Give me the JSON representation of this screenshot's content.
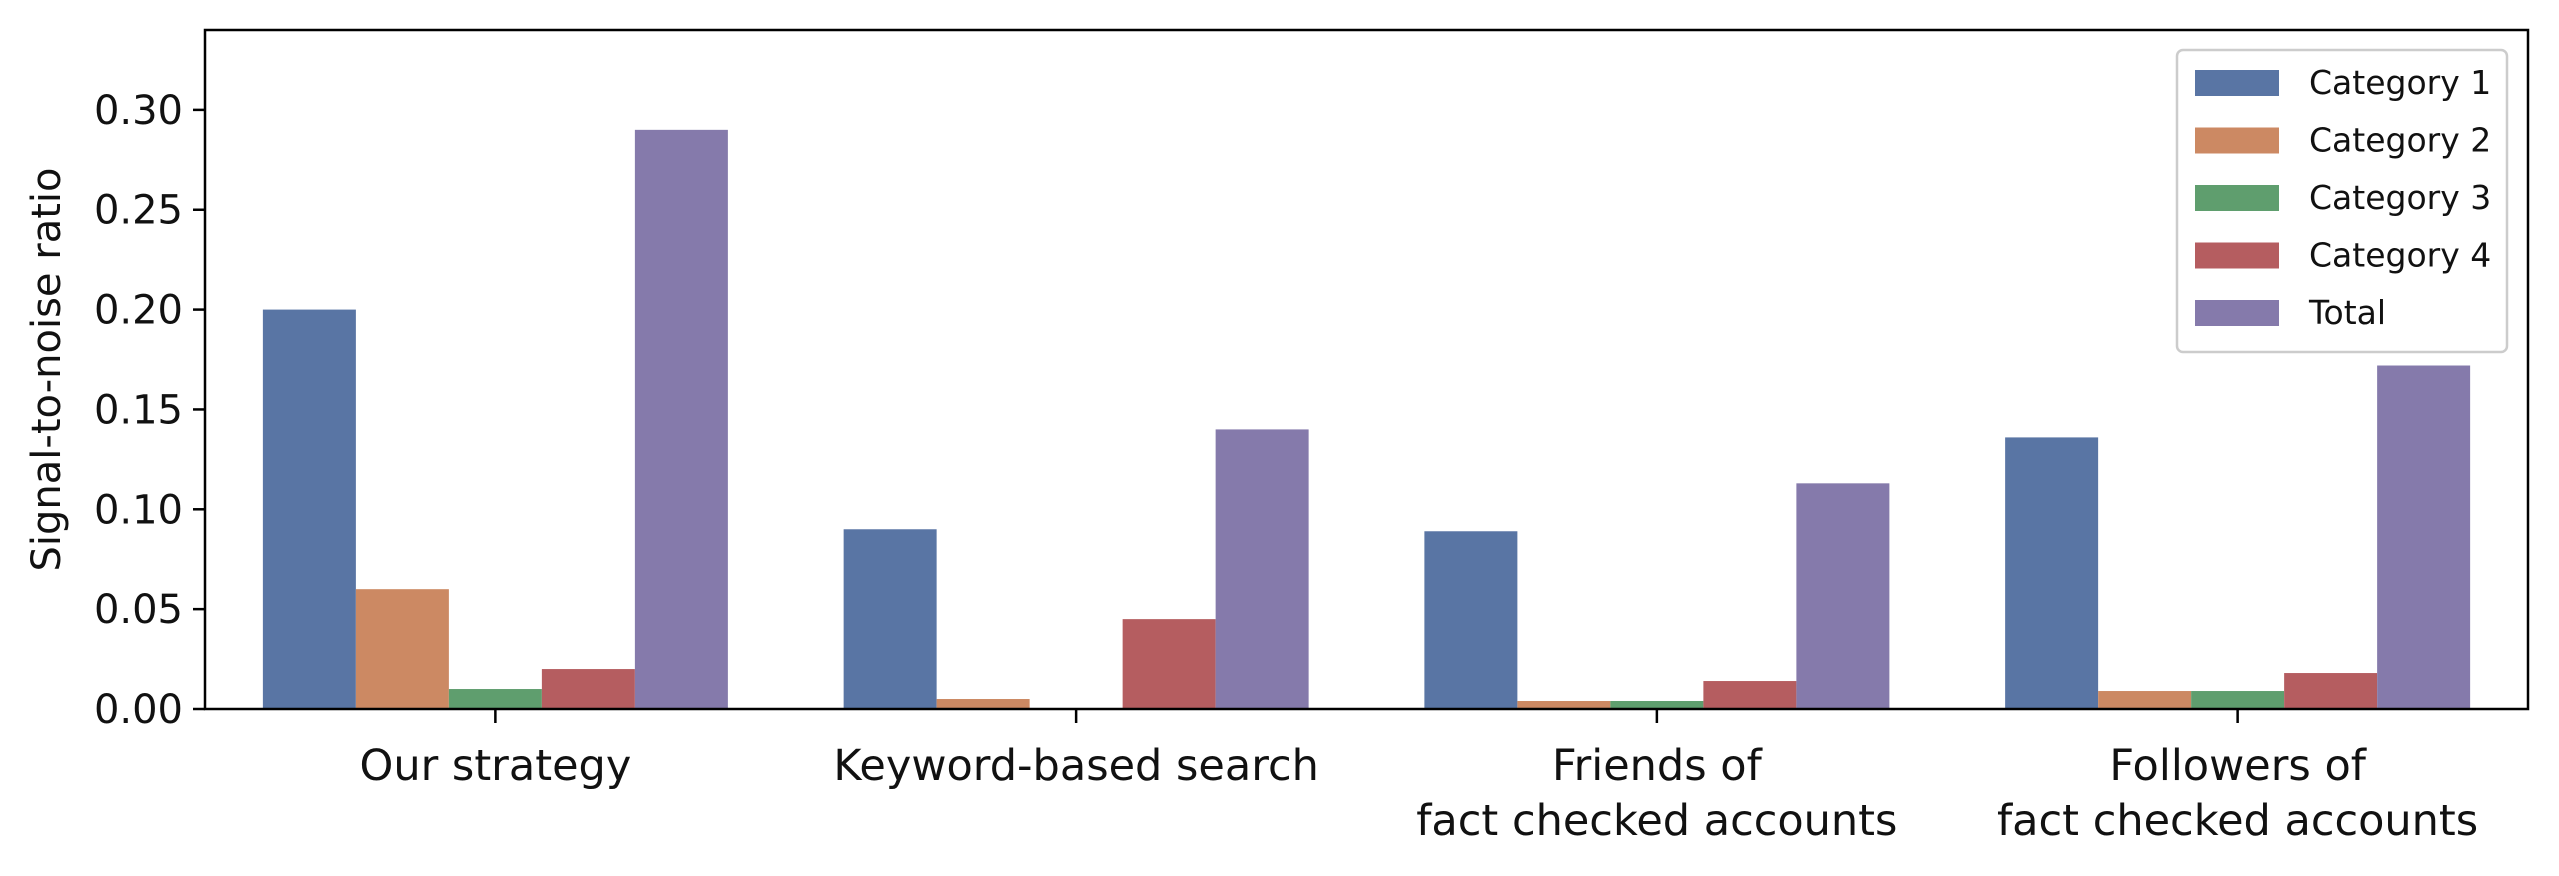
{
  "chart_data": {
    "type": "bar",
    "title": "",
    "xlabel": "",
    "ylabel": "Signal-to-noise ratio",
    "ylim": [
      0,
      0.34
    ],
    "yticks": [
      "0.00",
      "0.05",
      "0.10",
      "0.15",
      "0.20",
      "0.25",
      "0.30"
    ],
    "grid": false,
    "legend_position": "top-right",
    "categories": [
      [
        "Our strategy"
      ],
      [
        "Keyword-based search"
      ],
      [
        "Friends of",
        "fact checked accounts"
      ],
      [
        "Followers of",
        "fact checked accounts"
      ]
    ],
    "series": [
      {
        "name": "Category 1",
        "color": "#5975a4",
        "values": [
          0.2,
          0.09,
          0.089,
          0.136
        ]
      },
      {
        "name": "Category 2",
        "color": "#cc8963",
        "values": [
          0.06,
          0.005,
          0.004,
          0.009
        ]
      },
      {
        "name": "Category 3",
        "color": "#5f9e6e",
        "values": [
          0.01,
          0.0,
          0.004,
          0.009
        ]
      },
      {
        "name": "Category 4",
        "color": "#b55d60",
        "values": [
          0.02,
          0.045,
          0.014,
          0.018
        ]
      },
      {
        "name": "Total",
        "color": "#857aab",
        "values": [
          0.29,
          0.14,
          0.113,
          0.172
        ]
      }
    ]
  }
}
